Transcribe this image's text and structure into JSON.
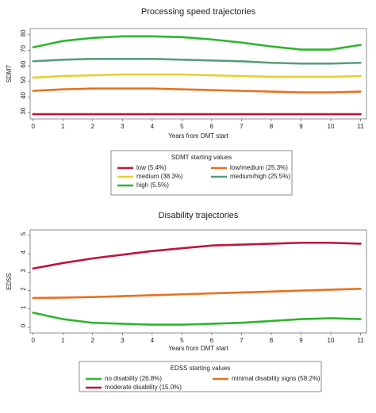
{
  "chart_data": [
    {
      "type": "line",
      "title": "Processing speed trajectories",
      "xlabel": "Years from DMT start",
      "ylabel": "SDMT",
      "x": [
        0,
        1,
        2,
        3,
        4,
        5,
        6,
        7,
        8,
        9,
        10,
        11
      ],
      "xlim": [
        -0.1,
        11.2
      ],
      "xticks": [
        0,
        1,
        2,
        3,
        4,
        5,
        6,
        7,
        8,
        9,
        10,
        11
      ],
      "ylim": [
        26,
        84
      ],
      "yticks": [
        30,
        40,
        50,
        60,
        70,
        80
      ],
      "legend_title": "SDMT starting values",
      "series": [
        {
          "name": "low (5.4%)",
          "color": "#c0143c",
          "values": [
            29,
            29,
            29,
            29,
            29,
            29,
            29,
            29,
            29,
            29,
            29,
            29
          ]
        },
        {
          "name": "low/medium (25.3%)",
          "color": "#e8711e",
          "values": [
            44,
            45,
            45.5,
            45.5,
            45.5,
            45,
            44.5,
            44,
            43.5,
            43,
            43,
            43.5
          ]
        },
        {
          "name": "medium (38.3%)",
          "color": "#e6cf30",
          "values": [
            52.5,
            53.5,
            54,
            54.5,
            54.5,
            54.5,
            54,
            53.5,
            53,
            53,
            53,
            53.5
          ]
        },
        {
          "name": "medium/high (25.5%)",
          "color": "#5a9e7a",
          "values": [
            63,
            64,
            64.5,
            64.5,
            64.5,
            64,
            63.5,
            63,
            62,
            61.5,
            61.5,
            62
          ]
        },
        {
          "name": "high (5.5%)",
          "color": "#2fb52e",
          "values": [
            72,
            76,
            78,
            79,
            79,
            78.5,
            77,
            75,
            72.5,
            70.5,
            70.5,
            73.5
          ]
        }
      ]
    },
    {
      "type": "line",
      "title": "Disability trajectories",
      "xlabel": "Years from DMT start",
      "ylabel": "EDSS",
      "x": [
        0,
        1,
        2,
        3,
        4,
        5,
        6,
        7,
        8,
        9,
        10,
        11
      ],
      "xlim": [
        -0.1,
        11.2
      ],
      "xticks": [
        0,
        1,
        2,
        3,
        4,
        5,
        6,
        7,
        8,
        9,
        10,
        11
      ],
      "ylim": [
        -0.3,
        5.3
      ],
      "yticks": [
        0,
        1,
        2,
        3,
        4,
        5
      ],
      "legend_title": "EDSS starting values",
      "series": [
        {
          "name": "no disability (26.8%)",
          "color": "#2fb52e",
          "values": [
            0.8,
            0.45,
            0.25,
            0.2,
            0.15,
            0.15,
            0.2,
            0.25,
            0.35,
            0.45,
            0.5,
            0.45
          ]
        },
        {
          "name": "minimal disability signs (58.2%)",
          "color": "#e8711e",
          "values": [
            1.6,
            1.62,
            1.65,
            1.7,
            1.75,
            1.8,
            1.85,
            1.9,
            1.95,
            2.0,
            2.05,
            2.1
          ]
        },
        {
          "name": "moderate disability (15.0%)",
          "color": "#c0143c",
          "values": [
            3.2,
            3.5,
            3.75,
            3.95,
            4.15,
            4.3,
            4.45,
            4.5,
            4.55,
            4.6,
            4.6,
            4.55
          ]
        }
      ]
    }
  ]
}
